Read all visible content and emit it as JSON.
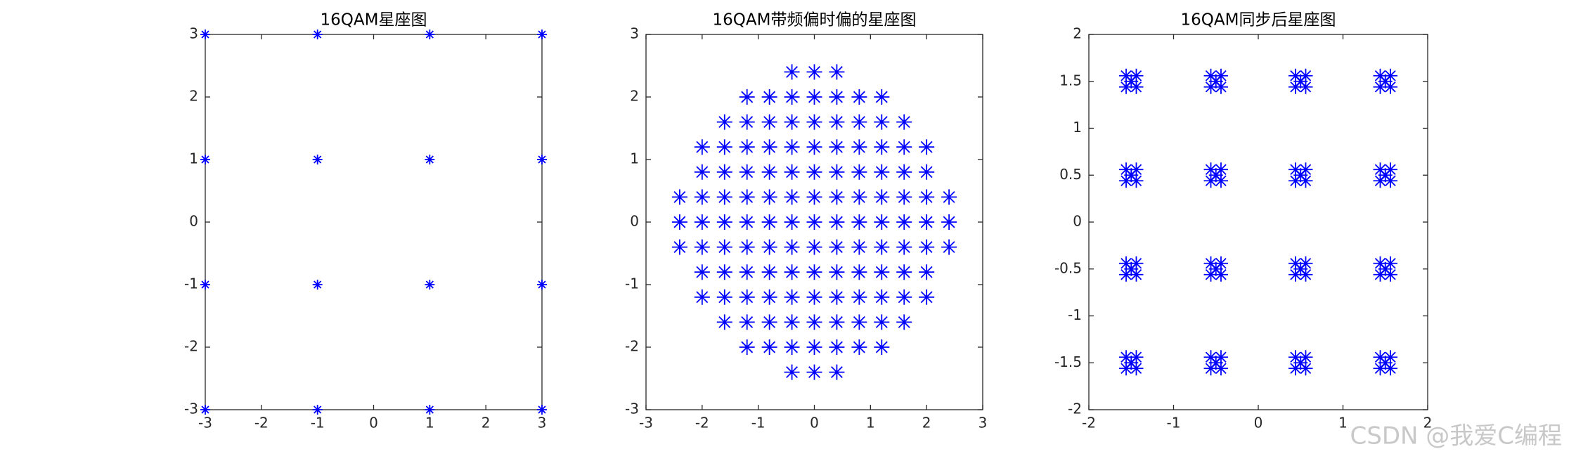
{
  "chart_data": [
    {
      "type": "scatter",
      "title": "16QAM星座图",
      "color": "#0000ff",
      "x": [
        -3,
        -1,
        1,
        3,
        -3,
        -1,
        1,
        3,
        -3,
        -1,
        1,
        3,
        -3,
        -1,
        1,
        3
      ],
      "y": [
        3,
        3,
        3,
        3,
        1,
        1,
        1,
        1,
        -1,
        -1,
        -1,
        -1,
        -3,
        -3,
        -3,
        -3
      ],
      "xlim": [
        -3,
        3
      ],
      "ylim": [
        -3,
        3
      ],
      "xticks": [
        -3,
        -2,
        -1,
        0,
        1,
        2,
        3
      ],
      "yticks": [
        -3,
        -2,
        -1,
        0,
        1,
        2,
        3
      ]
    },
    {
      "type": "scatter",
      "title": "16QAM带频偏时偏的星座图",
      "color": "#0000ff",
      "x": [
        -0.4,
        0,
        0.4,
        -1.2,
        -0.8,
        -0.4,
        0,
        0.4,
        0.8,
        1.2,
        -1.6,
        -1.2,
        -0.8,
        -0.4,
        0,
        0.4,
        0.8,
        1.2,
        1.6,
        -2,
        -1.6,
        -1.2,
        -0.8,
        -0.4,
        0,
        0.4,
        0.8,
        1.2,
        1.6,
        2,
        -2,
        -1.6,
        -1.2,
        -0.8,
        -0.4,
        0,
        0.4,
        0.8,
        1.2,
        1.6,
        2,
        -2.4,
        -2,
        -1.6,
        -1.2,
        -0.8,
        -0.4,
        0,
        0.4,
        0.8,
        1.2,
        1.6,
        2,
        2.4,
        -2.4,
        -2,
        -1.6,
        -1.2,
        -0.8,
        -0.4,
        0,
        0.4,
        0.8,
        1.2,
        1.6,
        2,
        2.4,
        -2.4,
        -2,
        -1.6,
        -1.2,
        -0.8,
        -0.4,
        0,
        0.4,
        0.8,
        1.2,
        1.6,
        2,
        2.4,
        -2,
        -1.6,
        -1.2,
        -0.8,
        -0.4,
        0,
        0.4,
        0.8,
        1.2,
        1.6,
        2,
        -2,
        -1.6,
        -1.2,
        -0.8,
        -0.4,
        0,
        0.4,
        0.8,
        1.2,
        1.6,
        2,
        -1.6,
        -1.2,
        -0.8,
        -0.4,
        0,
        0.4,
        0.8,
        1.2,
        1.6,
        -1.2,
        -0.8,
        -0.4,
        0,
        0.4,
        0.8,
        1.2,
        -0.4,
        0,
        0.4
      ],
      "y": [
        2.4,
        2.4,
        2.4,
        2,
        2,
        2,
        2,
        2,
        2,
        2,
        1.6,
        1.6,
        1.6,
        1.6,
        1.6,
        1.6,
        1.6,
        1.6,
        1.6,
        1.2,
        1.2,
        1.2,
        1.2,
        1.2,
        1.2,
        1.2,
        1.2,
        1.2,
        1.2,
        1.2,
        0.8,
        0.8,
        0.8,
        0.8,
        0.8,
        0.8,
        0.8,
        0.8,
        0.8,
        0.8,
        0.8,
        0.4,
        0.4,
        0.4,
        0.4,
        0.4,
        0.4,
        0.4,
        0.4,
        0.4,
        0.4,
        0.4,
        0.4,
        0.4,
        0,
        0,
        0,
        0,
        0,
        0,
        0,
        0,
        0,
        0,
        0,
        0,
        0,
        -0.4,
        -0.4,
        -0.4,
        -0.4,
        -0.4,
        -0.4,
        -0.4,
        -0.4,
        -0.4,
        -0.4,
        -0.4,
        -0.4,
        -0.4,
        -0.8,
        -0.8,
        -0.8,
        -0.8,
        -0.8,
        -0.8,
        -0.8,
        -0.8,
        -0.8,
        -0.8,
        -0.8,
        -1.2,
        -1.2,
        -1.2,
        -1.2,
        -1.2,
        -1.2,
        -1.2,
        -1.2,
        -1.2,
        -1.2,
        -1.2,
        -1.6,
        -1.6,
        -1.6,
        -1.6,
        -1.6,
        -1.6,
        -1.6,
        -1.6,
        -1.6,
        -2,
        -2,
        -2,
        -2,
        -2,
        -2,
        -2,
        -2.4,
        -2.4,
        -2.4
      ],
      "xlim": [
        -3,
        3
      ],
      "ylim": [
        -3,
        3
      ],
      "xticks": [
        -3,
        -2,
        -1,
        0,
        1,
        2,
        3
      ],
      "yticks": [
        -3,
        -2,
        -1,
        0,
        1,
        2,
        3
      ]
    },
    {
      "type": "scatter",
      "title": "16QAM同步后星座图",
      "color": "#0000ff",
      "x": [
        -1.5,
        -1.56,
        -1.44,
        -1.56,
        -1.44,
        -0.5,
        -0.56,
        -0.44,
        -0.56,
        -0.44,
        0.5,
        0.44,
        0.56,
        0.44,
        0.56,
        1.5,
        1.44,
        1.56,
        1.44,
        1.56,
        -1.5,
        -1.56,
        -1.44,
        -1.56,
        -1.44,
        -0.5,
        -0.56,
        -0.44,
        -0.56,
        -0.44,
        0.5,
        0.44,
        0.56,
        0.44,
        0.56,
        1.5,
        1.44,
        1.56,
        1.44,
        1.56,
        -1.5,
        -1.56,
        -1.44,
        -1.56,
        -1.44,
        -0.5,
        -0.56,
        -0.44,
        -0.56,
        -0.44,
        0.5,
        0.44,
        0.56,
        0.44,
        0.56,
        1.5,
        1.44,
        1.56,
        1.44,
        1.56,
        -1.5,
        -1.56,
        -1.44,
        -1.56,
        -1.44,
        -0.5,
        -0.56,
        -0.44,
        -0.56,
        -0.44,
        0.5,
        0.44,
        0.56,
        0.44,
        0.56,
        1.5,
        1.44,
        1.56,
        1.44,
        1.56
      ],
      "y": [
        1.5,
        1.56,
        1.56,
        1.44,
        1.44,
        1.5,
        1.56,
        1.56,
        1.44,
        1.44,
        1.5,
        1.56,
        1.56,
        1.44,
        1.44,
        1.5,
        1.56,
        1.56,
        1.44,
        1.44,
        0.5,
        0.56,
        0.56,
        0.44,
        0.44,
        0.5,
        0.56,
        0.56,
        0.44,
        0.44,
        0.5,
        0.56,
        0.56,
        0.44,
        0.44,
        0.5,
        0.56,
        0.56,
        0.44,
        0.44,
        -0.5,
        -0.44,
        -0.44,
        -0.56,
        -0.56,
        -0.5,
        -0.44,
        -0.44,
        -0.56,
        -0.56,
        -0.5,
        -0.44,
        -0.44,
        -0.56,
        -0.56,
        -0.5,
        -0.44,
        -0.44,
        -0.56,
        -0.56,
        -1.5,
        -1.44,
        -1.44,
        -1.56,
        -1.56,
        -1.5,
        -1.44,
        -1.44,
        -1.56,
        -1.56,
        -1.5,
        -1.44,
        -1.44,
        -1.56,
        -1.56,
        -1.5,
        -1.44,
        -1.44,
        -1.56,
        -1.56
      ],
      "xlim": [
        -2,
        2
      ],
      "ylim": [
        -2,
        2
      ],
      "xticks": [
        -2,
        -1,
        0,
        1,
        2
      ],
      "yticks": [
        -2,
        -1.5,
        -1,
        -0.5,
        0,
        0.5,
        1,
        1.5,
        2
      ]
    }
  ],
  "watermark": "CSDN @我爱C编程"
}
